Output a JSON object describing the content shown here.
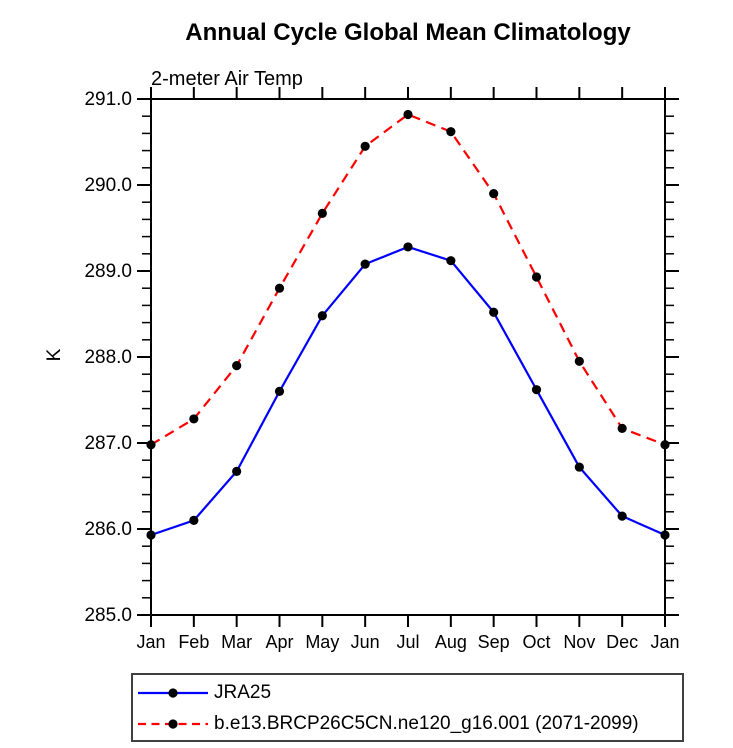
{
  "header": {
    "title": "Annual Cycle Global Mean Climatology",
    "subtitle": "2-meter Air Temp"
  },
  "chart_data": {
    "type": "line",
    "title": "Annual Cycle Global Mean Climatology",
    "subtitle": "2-meter Air Temp",
    "xlabel": "",
    "ylabel": "K",
    "categories": [
      "Jan",
      "Feb",
      "Mar",
      "Apr",
      "May",
      "Jun",
      "Jul",
      "Aug",
      "Sep",
      "Oct",
      "Nov",
      "Dec",
      "Jan"
    ],
    "ylim": [
      285.0,
      291.0
    ],
    "ytick_major_interval": 1.0,
    "ytick_minor_interval": 0.2,
    "ytick_labels": [
      "285.0",
      "286.0",
      "287.0",
      "288.0",
      "289.0",
      "290.0",
      "291.0"
    ],
    "grid": false,
    "legend_position": "bottom-left-outside",
    "axis_color": "#000000",
    "marker_color": "#000000",
    "series": [
      {
        "name": "JRA25",
        "color": "#0000ff",
        "line_style": "solid",
        "marker": "filled-circle",
        "values": [
          285.93,
          286.1,
          286.67,
          287.6,
          288.48,
          289.08,
          289.28,
          289.12,
          288.52,
          287.62,
          286.72,
          286.15,
          285.93
        ]
      },
      {
        "name": "b.e13.BRCP26C5CN.ne120_g16.001 (2071-2099)",
        "color": "#ff0000",
        "line_style": "dashed",
        "marker": "filled-circle",
        "values": [
          286.98,
          287.28,
          287.9,
          288.8,
          289.67,
          290.45,
          290.82,
          290.62,
          289.9,
          288.93,
          287.95,
          287.17,
          286.98
        ]
      }
    ]
  }
}
